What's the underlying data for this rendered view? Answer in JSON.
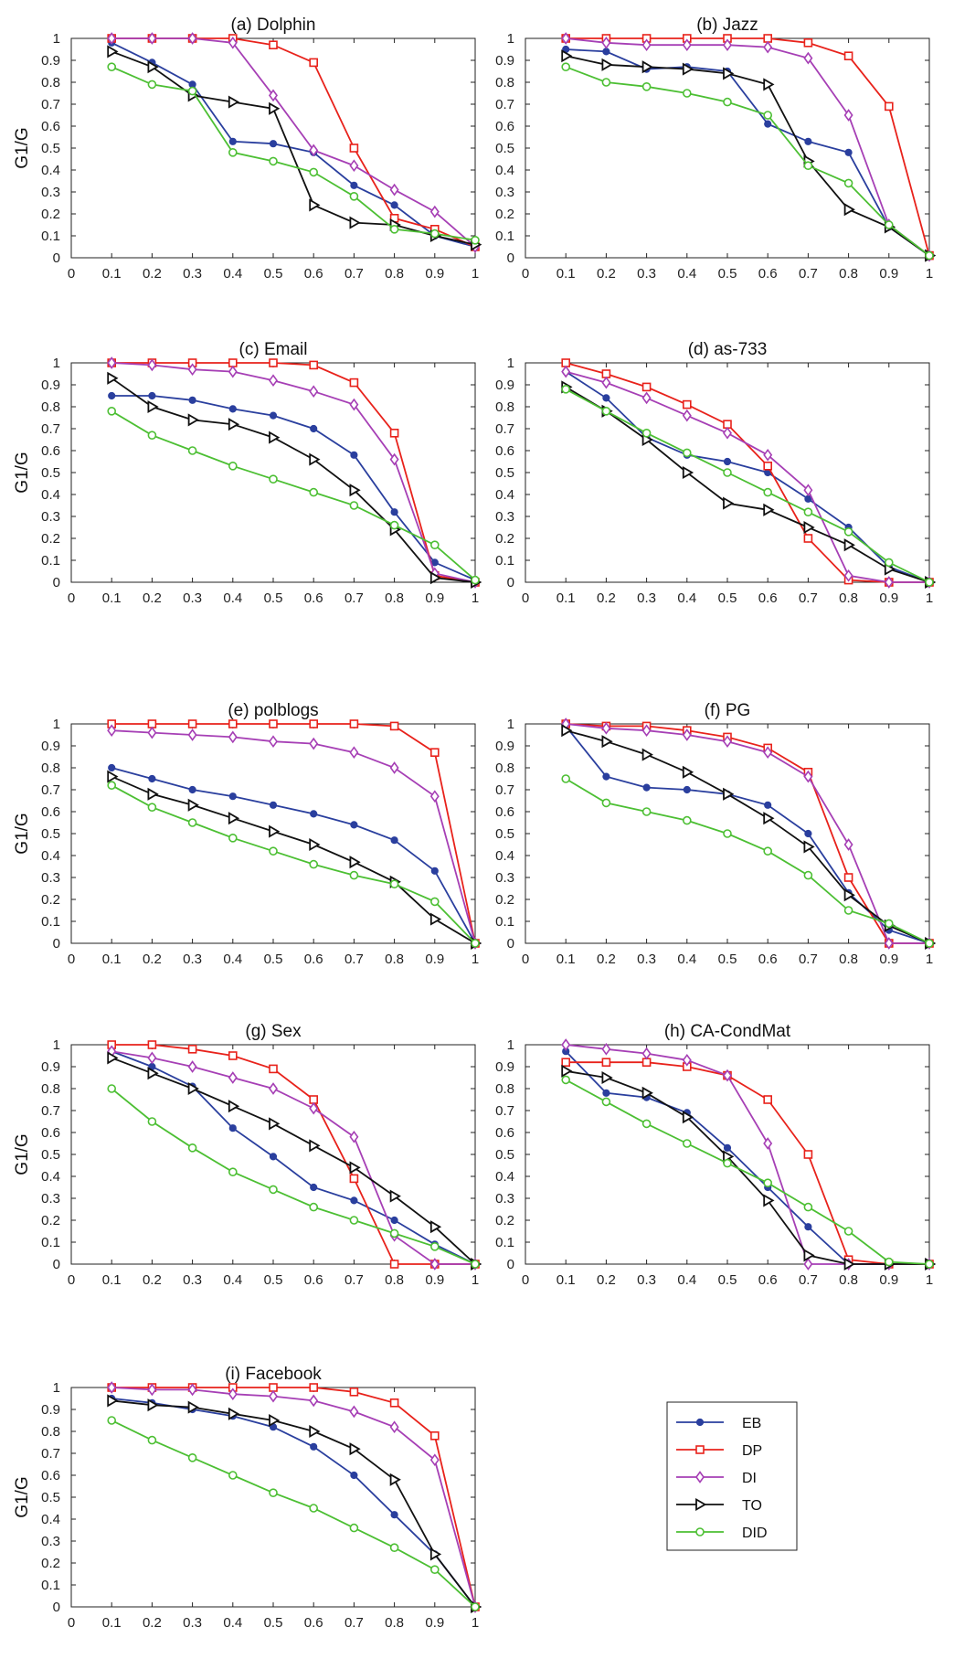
{
  "figure": {
    "series_colors": {
      "EB": "#2a3f9e",
      "DP": "#e8221b",
      "DI": "#a63fb5",
      "TO": "#111111",
      "DID": "#4cbf33"
    },
    "series_markers": {
      "EB": "dot",
      "DP": "square",
      "DI": "diamond",
      "TO": "triangle-right",
      "DID": "circle"
    },
    "legend": [
      "EB",
      "DP",
      "DI",
      "TO",
      "DID"
    ],
    "legend_placement": "right of panel (i)"
  },
  "chart_data": [
    {
      "type": "line",
      "title": "(a) Dolphin",
      "ylabel": "G1/G",
      "xlabel": "",
      "x": [
        0.1,
        0.2,
        0.3,
        0.4,
        0.5,
        0.6,
        0.7,
        0.8,
        0.9,
        1
      ],
      "xlim": [
        0,
        1
      ],
      "ylim": [
        0,
        1
      ],
      "xticks": [
        "0",
        "0.1",
        "0.2",
        "0.3",
        "0.4",
        "0.5",
        "0.6",
        "0.7",
        "0.8",
        "0.9",
        "1"
      ],
      "yticks": [
        "0",
        "0.1",
        "0.2",
        "0.3",
        "0.4",
        "0.5",
        "0.6",
        "0.7",
        "0.8",
        "0.9",
        "1"
      ],
      "series": [
        {
          "name": "EB",
          "values": [
            0.98,
            0.89,
            0.79,
            0.53,
            0.52,
            0.48,
            0.33,
            0.24,
            0.1,
            0.05
          ]
        },
        {
          "name": "DP",
          "values": [
            1.0,
            1.0,
            1.0,
            1.0,
            0.97,
            0.89,
            0.5,
            0.18,
            0.13,
            0.05
          ]
        },
        {
          "name": "DI",
          "values": [
            1.0,
            1.0,
            1.0,
            0.98,
            0.74,
            0.49,
            0.42,
            0.31,
            0.21,
            0.05
          ]
        },
        {
          "name": "TO",
          "values": [
            0.94,
            0.87,
            0.74,
            0.71,
            0.68,
            0.24,
            0.16,
            0.15,
            0.1,
            0.06
          ]
        },
        {
          "name": "DID",
          "values": [
            0.87,
            0.79,
            0.76,
            0.48,
            0.44,
            0.39,
            0.28,
            0.13,
            0.11,
            0.08
          ]
        }
      ]
    },
    {
      "type": "line",
      "title": "(b) Jazz",
      "ylabel": "",
      "xlabel": "",
      "x": [
        0.1,
        0.2,
        0.3,
        0.4,
        0.5,
        0.6,
        0.7,
        0.8,
        0.9,
        1
      ],
      "xlim": [
        0,
        1
      ],
      "ylim": [
        0,
        1
      ],
      "xticks": [
        "0",
        "0.1",
        "0.2",
        "0.3",
        "0.4",
        "0.5",
        "0.6",
        "0.7",
        "0.8",
        "0.9",
        "1"
      ],
      "yticks": [
        "0",
        "0.1",
        "0.2",
        "0.3",
        "0.4",
        "0.5",
        "0.6",
        "0.7",
        "0.8",
        "0.9",
        "1"
      ],
      "series": [
        {
          "name": "EB",
          "values": [
            0.95,
            0.94,
            0.86,
            0.87,
            0.85,
            0.61,
            0.53,
            0.48,
            0.14,
            0.01
          ]
        },
        {
          "name": "DP",
          "values": [
            1.0,
            1.0,
            1.0,
            1.0,
            1.0,
            1.0,
            0.98,
            0.92,
            0.69,
            0.01
          ]
        },
        {
          "name": "DI",
          "values": [
            1.0,
            0.98,
            0.97,
            0.97,
            0.97,
            0.96,
            0.91,
            0.65,
            0.15,
            0.01
          ]
        },
        {
          "name": "TO",
          "values": [
            0.92,
            0.88,
            0.87,
            0.86,
            0.84,
            0.79,
            0.44,
            0.22,
            0.14,
            0.01
          ]
        },
        {
          "name": "DID",
          "values": [
            0.87,
            0.8,
            0.78,
            0.75,
            0.71,
            0.65,
            0.42,
            0.34,
            0.15,
            0.01
          ]
        }
      ]
    },
    {
      "type": "line",
      "title": "(c) Email",
      "ylabel": "G1/G",
      "xlabel": "",
      "x": [
        0.1,
        0.2,
        0.3,
        0.4,
        0.5,
        0.6,
        0.7,
        0.8,
        0.9,
        1
      ],
      "xlim": [
        0,
        1
      ],
      "ylim": [
        0,
        1
      ],
      "xticks": [
        "0",
        "0.1",
        "0.2",
        "0.3",
        "0.4",
        "0.5",
        "0.6",
        "0.7",
        "0.8",
        "0.9",
        "1"
      ],
      "yticks": [
        "0",
        "0.1",
        "0.2",
        "0.3",
        "0.4",
        "0.5",
        "0.6",
        "0.7",
        "0.8",
        "0.9",
        "1"
      ],
      "series": [
        {
          "name": "EB",
          "values": [
            0.85,
            0.85,
            0.83,
            0.79,
            0.76,
            0.7,
            0.58,
            0.32,
            0.09,
            0.01
          ]
        },
        {
          "name": "DP",
          "values": [
            1.0,
            1.0,
            1.0,
            1.0,
            1.0,
            0.99,
            0.91,
            0.68,
            0.03,
            0.0
          ]
        },
        {
          "name": "DI",
          "values": [
            1.0,
            0.99,
            0.97,
            0.96,
            0.92,
            0.87,
            0.81,
            0.56,
            0.04,
            0.0
          ]
        },
        {
          "name": "TO",
          "values": [
            0.93,
            0.8,
            0.74,
            0.72,
            0.66,
            0.56,
            0.42,
            0.24,
            0.02,
            0.0
          ]
        },
        {
          "name": "DID",
          "values": [
            0.78,
            0.67,
            0.6,
            0.53,
            0.47,
            0.41,
            0.35,
            0.26,
            0.17,
            0.01
          ]
        }
      ]
    },
    {
      "type": "line",
      "title": "(d) as-733",
      "ylabel": "",
      "xlabel": "",
      "x": [
        0.1,
        0.2,
        0.3,
        0.4,
        0.5,
        0.6,
        0.7,
        0.8,
        0.9,
        1
      ],
      "xlim": [
        0,
        1
      ],
      "ylim": [
        0,
        1
      ],
      "xticks": [
        "0",
        "0.1",
        "0.2",
        "0.3",
        "0.4",
        "0.5",
        "0.6",
        "0.7",
        "0.8",
        "0.9",
        "1"
      ],
      "yticks": [
        "0",
        "0.1",
        "0.2",
        "0.3",
        "0.4",
        "0.5",
        "0.6",
        "0.7",
        "0.8",
        "0.9",
        "1"
      ],
      "series": [
        {
          "name": "EB",
          "values": [
            0.96,
            0.84,
            0.66,
            0.58,
            0.55,
            0.5,
            0.38,
            0.25,
            0.07,
            0.0
          ]
        },
        {
          "name": "DP",
          "values": [
            1.0,
            0.95,
            0.89,
            0.81,
            0.72,
            0.53,
            0.2,
            0.01,
            0.0,
            0.0
          ]
        },
        {
          "name": "DI",
          "values": [
            0.96,
            0.91,
            0.84,
            0.76,
            0.68,
            0.58,
            0.42,
            0.03,
            0.0,
            0.0
          ]
        },
        {
          "name": "TO",
          "values": [
            0.89,
            0.78,
            0.65,
            0.5,
            0.36,
            0.33,
            0.25,
            0.17,
            0.06,
            0.0
          ]
        },
        {
          "name": "DID",
          "values": [
            0.88,
            0.78,
            0.68,
            0.59,
            0.5,
            0.41,
            0.32,
            0.23,
            0.09,
            0.0
          ]
        }
      ]
    },
    {
      "type": "line",
      "title": "(e) polblogs",
      "ylabel": "G1/G",
      "xlabel": "",
      "x": [
        0.1,
        0.2,
        0.3,
        0.4,
        0.5,
        0.6,
        0.7,
        0.8,
        0.9,
        1
      ],
      "xlim": [
        0,
        1
      ],
      "ylim": [
        0,
        1
      ],
      "xticks": [
        "0",
        "0.1",
        "0.2",
        "0.3",
        "0.4",
        "0.5",
        "0.6",
        "0.7",
        "0.8",
        "0.9",
        "1"
      ],
      "yticks": [
        "0",
        "0.1",
        "0.2",
        "0.3",
        "0.4",
        "0.5",
        "0.6",
        "0.7",
        "0.8",
        "0.9",
        "1"
      ],
      "series": [
        {
          "name": "EB",
          "values": [
            0.8,
            0.75,
            0.7,
            0.67,
            0.63,
            0.59,
            0.54,
            0.47,
            0.33,
            0.0
          ]
        },
        {
          "name": "DP",
          "values": [
            1.0,
            1.0,
            1.0,
            1.0,
            1.0,
            1.0,
            1.0,
            0.99,
            0.87,
            0.0
          ]
        },
        {
          "name": "DI",
          "values": [
            0.97,
            0.96,
            0.95,
            0.94,
            0.92,
            0.91,
            0.87,
            0.8,
            0.67,
            0.0
          ]
        },
        {
          "name": "TO",
          "values": [
            0.76,
            0.68,
            0.63,
            0.57,
            0.51,
            0.45,
            0.37,
            0.28,
            0.11,
            0.0
          ]
        },
        {
          "name": "DID",
          "values": [
            0.72,
            0.62,
            0.55,
            0.48,
            0.42,
            0.36,
            0.31,
            0.27,
            0.19,
            0.0
          ]
        }
      ]
    },
    {
      "type": "line",
      "title": "(f) PG",
      "ylabel": "",
      "xlabel": "",
      "x": [
        0.1,
        0.2,
        0.3,
        0.4,
        0.5,
        0.6,
        0.7,
        0.8,
        0.9,
        1
      ],
      "xlim": [
        0,
        1
      ],
      "ylim": [
        0,
        1
      ],
      "xticks": [
        "0",
        "0.1",
        "0.2",
        "0.3",
        "0.4",
        "0.5",
        "0.6",
        "0.7",
        "0.8",
        "0.9",
        "1"
      ],
      "yticks": [
        "0",
        "0.1",
        "0.2",
        "0.3",
        "0.4",
        "0.5",
        "0.6",
        "0.7",
        "0.8",
        "0.9",
        "1"
      ],
      "series": [
        {
          "name": "EB",
          "values": [
            0.99,
            0.76,
            0.71,
            0.7,
            0.68,
            0.63,
            0.5,
            0.23,
            0.06,
            0.0
          ]
        },
        {
          "name": "DP",
          "values": [
            1.0,
            0.99,
            0.99,
            0.97,
            0.94,
            0.89,
            0.78,
            0.3,
            0.0,
            0.0
          ]
        },
        {
          "name": "DI",
          "values": [
            1.0,
            0.98,
            0.97,
            0.95,
            0.92,
            0.87,
            0.76,
            0.45,
            0.0,
            0.0
          ]
        },
        {
          "name": "TO",
          "values": [
            0.97,
            0.92,
            0.86,
            0.78,
            0.68,
            0.57,
            0.44,
            0.22,
            0.08,
            0.0
          ]
        },
        {
          "name": "DID",
          "values": [
            0.75,
            0.64,
            0.6,
            0.56,
            0.5,
            0.42,
            0.31,
            0.15,
            0.09,
            0.0
          ]
        }
      ]
    },
    {
      "type": "line",
      "title": "(g) Sex",
      "ylabel": "G1/G",
      "xlabel": "",
      "x": [
        0.1,
        0.2,
        0.3,
        0.4,
        0.5,
        0.6,
        0.7,
        0.8,
        0.9,
        1
      ],
      "xlim": [
        0,
        1
      ],
      "ylim": [
        0,
        1
      ],
      "xticks": [
        "0",
        "0.1",
        "0.2",
        "0.3",
        "0.4",
        "0.5",
        "0.6",
        "0.7",
        "0.8",
        "0.9",
        "1"
      ],
      "yticks": [
        "0",
        "0.1",
        "0.2",
        "0.3",
        "0.4",
        "0.5",
        "0.6",
        "0.7",
        "0.8",
        "0.9",
        "1"
      ],
      "series": [
        {
          "name": "EB",
          "values": [
            0.97,
            0.9,
            0.81,
            0.62,
            0.49,
            0.35,
            0.29,
            0.2,
            0.09,
            0.0
          ]
        },
        {
          "name": "DP",
          "values": [
            1.0,
            1.0,
            0.98,
            0.95,
            0.89,
            0.75,
            0.39,
            0.0,
            0.0,
            0.0
          ]
        },
        {
          "name": "DI",
          "values": [
            0.97,
            0.94,
            0.9,
            0.85,
            0.8,
            0.71,
            0.58,
            0.13,
            0.0,
            0.0
          ]
        },
        {
          "name": "TO",
          "values": [
            0.94,
            0.87,
            0.8,
            0.72,
            0.64,
            0.54,
            0.44,
            0.31,
            0.17,
            0.0
          ]
        },
        {
          "name": "DID",
          "values": [
            0.8,
            0.65,
            0.53,
            0.42,
            0.34,
            0.26,
            0.2,
            0.14,
            0.08,
            0.0
          ]
        }
      ]
    },
    {
      "type": "line",
      "title": "(h) CA-CondMat",
      "ylabel": "",
      "xlabel": "",
      "x": [
        0.1,
        0.2,
        0.3,
        0.4,
        0.5,
        0.6,
        0.7,
        0.8,
        0.9,
        1
      ],
      "xlim": [
        0,
        1
      ],
      "ylim": [
        0,
        1
      ],
      "xticks": [
        "0",
        "0.1",
        "0.2",
        "0.3",
        "0.4",
        "0.5",
        "0.6",
        "0.7",
        "0.8",
        "0.9",
        "1"
      ],
      "yticks": [
        "0",
        "0.1",
        "0.2",
        "0.3",
        "0.4",
        "0.5",
        "0.6",
        "0.7",
        "0.8",
        "0.9",
        "1"
      ],
      "series": [
        {
          "name": "EB",
          "values": [
            0.97,
            0.78,
            0.76,
            0.69,
            0.53,
            0.35,
            0.17,
            0.0,
            0.0,
            0.0
          ]
        },
        {
          "name": "DP",
          "values": [
            0.92,
            0.92,
            0.92,
            0.9,
            0.86,
            0.75,
            0.5,
            0.02,
            0.0,
            0.0
          ]
        },
        {
          "name": "DI",
          "values": [
            1.0,
            0.98,
            0.96,
            0.93,
            0.86,
            0.55,
            0.0,
            0.0,
            0.0,
            0.0
          ]
        },
        {
          "name": "TO",
          "values": [
            0.88,
            0.85,
            0.78,
            0.67,
            0.49,
            0.29,
            0.04,
            0.0,
            0.0,
            0.0
          ]
        },
        {
          "name": "DID",
          "values": [
            0.84,
            0.74,
            0.64,
            0.55,
            0.46,
            0.37,
            0.26,
            0.15,
            0.01,
            0.0
          ]
        }
      ]
    },
    {
      "type": "line",
      "title": "(i) Facebook",
      "ylabel": "G1/G",
      "xlabel": "",
      "x": [
        0.1,
        0.2,
        0.3,
        0.4,
        0.5,
        0.6,
        0.7,
        0.8,
        0.9,
        1
      ],
      "xlim": [
        0,
        1
      ],
      "ylim": [
        0,
        1
      ],
      "xticks": [
        "0",
        "0.1",
        "0.2",
        "0.3",
        "0.4",
        "0.5",
        "0.6",
        "0.7",
        "0.8",
        "0.9",
        "1"
      ],
      "yticks": [
        "0",
        "0.1",
        "0.2",
        "0.3",
        "0.4",
        "0.5",
        "0.6",
        "0.7",
        "0.8",
        "0.9",
        "1"
      ],
      "series": [
        {
          "name": "EB",
          "values": [
            0.95,
            0.93,
            0.9,
            0.87,
            0.82,
            0.73,
            0.6,
            0.42,
            0.24,
            0.0
          ]
        },
        {
          "name": "DP",
          "values": [
            1.0,
            1.0,
            1.0,
            1.0,
            1.0,
            1.0,
            0.98,
            0.93,
            0.78,
            0.0
          ]
        },
        {
          "name": "DI",
          "values": [
            1.0,
            0.99,
            0.99,
            0.97,
            0.96,
            0.94,
            0.89,
            0.82,
            0.67,
            0.0
          ]
        },
        {
          "name": "TO",
          "values": [
            0.94,
            0.92,
            0.91,
            0.88,
            0.85,
            0.8,
            0.72,
            0.58,
            0.24,
            0.0
          ]
        },
        {
          "name": "DID",
          "values": [
            0.85,
            0.76,
            0.68,
            0.6,
            0.52,
            0.45,
            0.36,
            0.27,
            0.17,
            0.0
          ]
        }
      ]
    }
  ]
}
